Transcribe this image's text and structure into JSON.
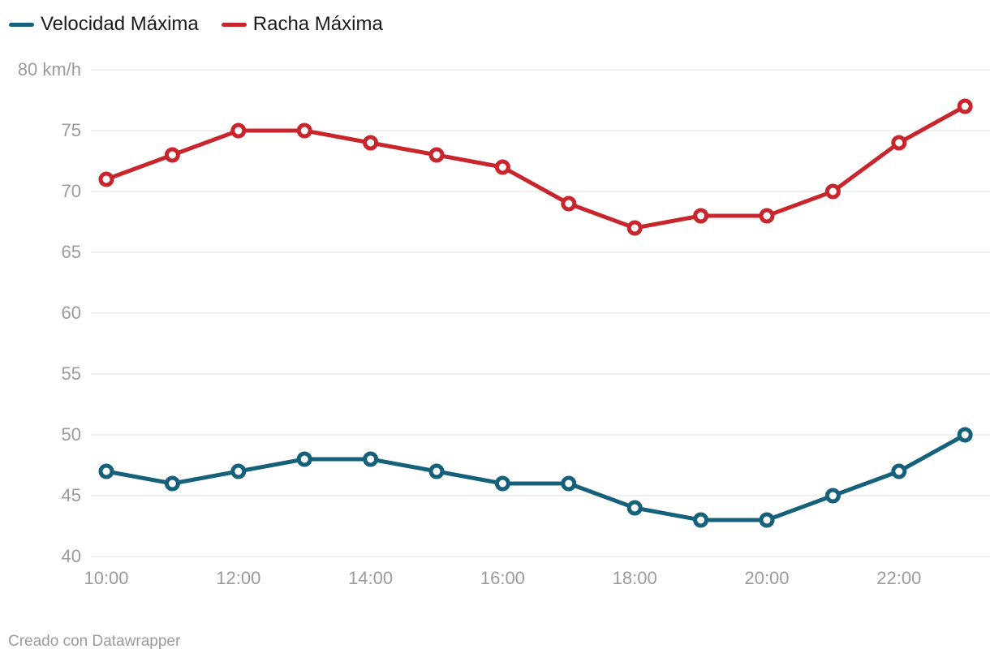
{
  "legend": {
    "items": [
      {
        "label": "Velocidad Máxima"
      },
      {
        "label": "Racha Máxima"
      }
    ]
  },
  "footer": {
    "text": "Creado con Datawrapper"
  },
  "chart_data": {
    "type": "line",
    "x": [
      "10:00",
      "11:00",
      "12:00",
      "13:00",
      "14:00",
      "15:00",
      "16:00",
      "17:00",
      "18:00",
      "19:00",
      "20:00",
      "21:00",
      "22:00",
      "23:00"
    ],
    "series": [
      {
        "name": "Velocidad Máxima",
        "color": "#15607a",
        "values": [
          47,
          46,
          47,
          48,
          48,
          47,
          46,
          46,
          44,
          43,
          43,
          45,
          47,
          50
        ]
      },
      {
        "name": "Racha Máxima",
        "color": "#c9252c",
        "values": [
          71,
          73,
          75,
          75,
          74,
          73,
          72,
          69,
          67,
          68,
          68,
          70,
          74,
          77
        ]
      }
    ],
    "title": "",
    "xlabel": "",
    "ylabel": "km/h",
    "ylim": [
      40,
      80
    ],
    "y_ticks": [
      80,
      75,
      70,
      65,
      60,
      55,
      50,
      45,
      40
    ],
    "y_tick_labels": [
      "80 km/h",
      "75",
      "70",
      "65",
      "60",
      "55",
      "50",
      "45",
      "40"
    ],
    "x_tick_labels": [
      "10:00",
      "12:00",
      "14:00",
      "16:00",
      "18:00",
      "20:00",
      "22:00"
    ],
    "grid": "horizontal",
    "gridline_color": "#e0e0e0",
    "marker_style": "open-circle",
    "legend_position": "top-left",
    "attribution": "Creado con Datawrapper"
  }
}
